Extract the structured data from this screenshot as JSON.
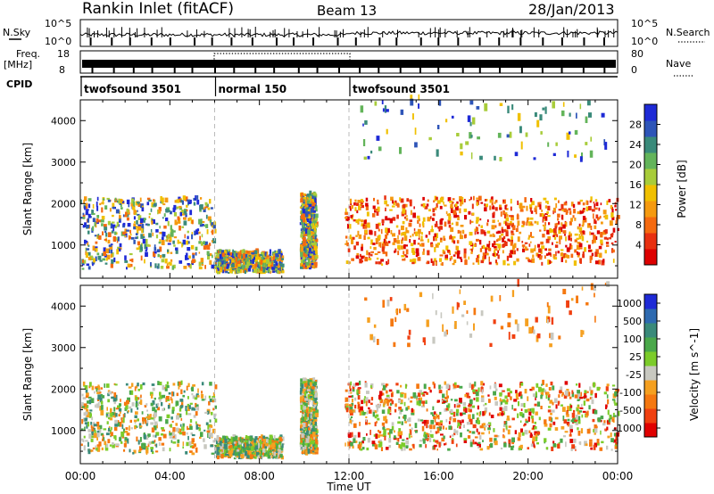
{
  "header": {
    "station": "Rankin Inlet (fitACF)",
    "beam": "Beam 13",
    "date": "28/Jan/2013"
  },
  "strip_labels": {
    "nsky": "N.Sky",
    "freq_line1": "Freq.",
    "freq_line2": "[MHz]",
    "cpid": "CPID",
    "nsearch": "N.Search",
    "nave": "Nave",
    "nsky_ticks": [
      "10^5",
      "10^0"
    ],
    "nsearch_ticks": [
      "10^5",
      "10^0"
    ],
    "freq_ticks": [
      "18",
      "8"
    ],
    "nave_ticks": [
      "80",
      "0"
    ]
  },
  "cpid_segments": [
    {
      "label": "twofsound 3501",
      "start_hour": 0,
      "end_hour": 6
    },
    {
      "label": "normal 150",
      "start_hour": 6,
      "end_hour": 12
    },
    {
      "label": "twofsound 3501",
      "start_hour": 12,
      "end_hour": 24
    }
  ],
  "chart_data": [
    {
      "type": "heatmap",
      "title": "",
      "quantity": "Power",
      "xlabel": "Time UT",
      "ylabel": "Slant Range [km]",
      "xlim": [
        0,
        24
      ],
      "ylim": [
        200,
        4500
      ],
      "x_ticks": [
        "00:00",
        "04:00",
        "08:00",
        "12:00",
        "16:00",
        "20:00",
        "00:00"
      ],
      "y_ticks": [
        1000,
        2000,
        3000,
        4000
      ],
      "colorbar": {
        "label": "Power [dB]",
        "ticks": [
          "4",
          "8",
          "12",
          "16",
          "20",
          "24",
          "28"
        ],
        "colors": [
          "#1e2ad6",
          "#2e55b8",
          "#3a8a7a",
          "#63b45a",
          "#a8cc3a",
          "#f0c000",
          "#f59a10",
          "#f56a10",
          "#e83010",
          "#dd0000"
        ]
      },
      "echo_regions": [
        {
          "t_start": 0.0,
          "t_end": 6.0,
          "r_low": 400,
          "r_high": 2100,
          "level": "mixed"
        },
        {
          "t_start": 6.0,
          "t_end": 9.0,
          "r_low": 300,
          "r_high": 800,
          "level": "mixed"
        },
        {
          "t_start": 9.8,
          "t_end": 10.5,
          "r_low": 400,
          "r_high": 2200,
          "level": "mixed"
        },
        {
          "t_start": 11.8,
          "t_end": 24.0,
          "r_low": 500,
          "r_high": 2100,
          "level": "strong"
        },
        {
          "t_start": 12.5,
          "t_end": 23.5,
          "r_low": 3000,
          "r_high": 4500,
          "level": "scattered"
        }
      ]
    },
    {
      "type": "heatmap",
      "title": "",
      "quantity": "Velocity",
      "xlabel": "Time UT",
      "ylabel": "Slant Range [km]",
      "xlim": [
        0,
        24
      ],
      "ylim": [
        200,
        4500
      ],
      "x_ticks": [
        "00:00",
        "04:00",
        "08:00",
        "12:00",
        "16:00",
        "20:00",
        "00:00"
      ],
      "y_ticks": [
        1000,
        2000,
        3000,
        4000
      ],
      "colorbar": {
        "label": "Velocity [m s^-1]",
        "ticks": [
          "1000",
          "500",
          "100",
          "25",
          "-25",
          "-100",
          "-500",
          "-1000"
        ],
        "colors": [
          "#1e2ad6",
          "#2e6ab0",
          "#3a8a7a",
          "#4aa84a",
          "#7ccc2a",
          "#c8c8c0",
          "#f5a020",
          "#f57810",
          "#f04010",
          "#e00000"
        ]
      },
      "echo_regions": [
        {
          "t_start": 0.0,
          "t_end": 6.0,
          "r_low": 400,
          "r_high": 2100,
          "level": "mixed"
        },
        {
          "t_start": 6.0,
          "t_end": 9.0,
          "r_low": 300,
          "r_high": 800,
          "level": "mixed"
        },
        {
          "t_start": 9.8,
          "t_end": 10.5,
          "r_low": 400,
          "r_high": 2200,
          "level": "mixed"
        },
        {
          "t_start": 11.8,
          "t_end": 24.0,
          "r_low": 500,
          "r_high": 2100,
          "level": "strong"
        },
        {
          "t_start": 12.5,
          "t_end": 23.5,
          "r_low": 3000,
          "r_high": 4500,
          "level": "scattered"
        }
      ]
    }
  ]
}
